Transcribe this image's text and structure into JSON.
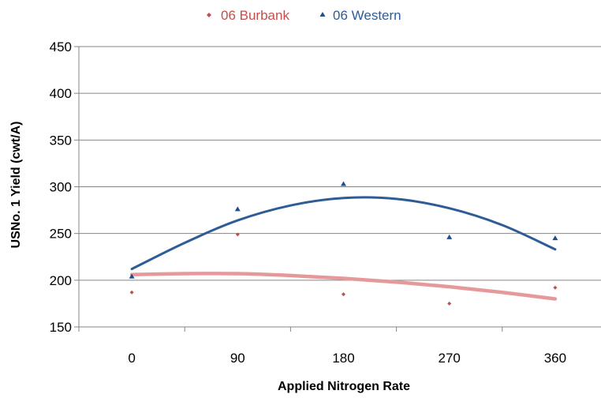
{
  "chart_data": {
    "type": "scatter",
    "title": "",
    "xlabel": "Applied Nitrogen Rate",
    "ylabel": "USNo. 1 Yield (cwt/A)",
    "x_ticks": [
      "0",
      "90",
      "180",
      "270",
      "360"
    ],
    "y_ticks": [
      "450",
      "400",
      "350",
      "300",
      "250",
      "200",
      "150"
    ],
    "xlim": [
      -45,
      405
    ],
    "ylim": [
      150,
      450
    ],
    "grid": "horizontal",
    "legend_position": "top",
    "series": [
      {
        "name": "06 Burbank",
        "marker": "diamond",
        "marker_color": "#C0504D",
        "trend_color": "#E6999A",
        "points": [
          {
            "x": 0,
            "y": 187
          },
          {
            "x": 90,
            "y": 249
          },
          {
            "x": 180,
            "y": 185
          },
          {
            "x": 270,
            "y": 175
          },
          {
            "x": 360,
            "y": 192
          }
        ],
        "trendline": {
          "type": "polynomial2",
          "points": [
            {
              "x": 0,
              "y": 206
            },
            {
              "x": 45,
              "y": 207
            },
            {
              "x": 90,
              "y": 207
            },
            {
              "x": 135,
              "y": 205
            },
            {
              "x": 180,
              "y": 202
            },
            {
              "x": 225,
              "y": 198
            },
            {
              "x": 270,
              "y": 193
            },
            {
              "x": 315,
              "y": 187
            },
            {
              "x": 360,
              "y": 180
            }
          ]
        }
      },
      {
        "name": "06 Western",
        "marker": "triangle",
        "marker_color": "#1F4E8C",
        "trend_color": "#2E5C97",
        "points": [
          {
            "x": 0,
            "y": 204
          },
          {
            "x": 90,
            "y": 276
          },
          {
            "x": 180,
            "y": 303
          },
          {
            "x": 270,
            "y": 246
          },
          {
            "x": 360,
            "y": 245
          }
        ],
        "trendline": {
          "type": "polynomial2",
          "points": [
            {
              "x": 0,
              "y": 212
            },
            {
              "x": 45,
              "y": 240
            },
            {
              "x": 90,
              "y": 264
            },
            {
              "x": 135,
              "y": 280
            },
            {
              "x": 180,
              "y": 288
            },
            {
              "x": 225,
              "y": 287
            },
            {
              "x": 270,
              "y": 277
            },
            {
              "x": 315,
              "y": 259
            },
            {
              "x": 360,
              "y": 233
            }
          ]
        }
      }
    ]
  }
}
